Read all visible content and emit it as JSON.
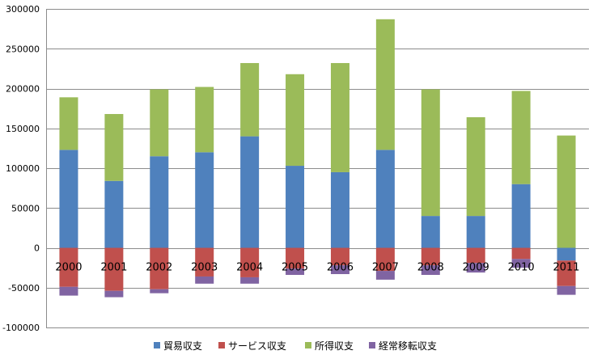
{
  "chart_data": {
    "type": "bar",
    "stacked": true,
    "categories": [
      "2000",
      "2001",
      "2002",
      "2003",
      "2004",
      "2005",
      "2006",
      "2007",
      "2008",
      "2009",
      "2010",
      "2011"
    ],
    "series": [
      {
        "name": "貿易収支",
        "color": "#4f81bd",
        "values": [
          123000,
          84000,
          115000,
          120000,
          140000,
          103000,
          95000,
          123000,
          40000,
          40000,
          80000,
          -16000
        ]
      },
      {
        "name": "サービス収支",
        "color": "#c0504d",
        "values": [
          -49000,
          -54000,
          -52000,
          -36000,
          -37000,
          -26000,
          -22000,
          -29000,
          -22000,
          -19000,
          -14000,
          -32000
        ]
      },
      {
        "name": "所得収支",
        "color": "#9bbb59",
        "values": [
          66000,
          84000,
          84000,
          82000,
          92000,
          115000,
          137000,
          164000,
          159000,
          124000,
          117000,
          141000
        ]
      },
      {
        "name": "経常移転収支",
        "color": "#8064a2",
        "values": [
          -11000,
          -8000,
          -5000,
          -9000,
          -8000,
          -8000,
          -11000,
          -11000,
          -12000,
          -12000,
          -11000,
          -11000
        ]
      }
    ],
    "ylim": [
      -100000,
      300000
    ],
    "yticks": [
      "300000",
      "250000",
      "200000",
      "150000",
      "100000",
      "50000",
      "0",
      "-50000",
      "-100000"
    ],
    "ytick_values": [
      300000,
      250000,
      200000,
      150000,
      100000,
      50000,
      0,
      -50000,
      -100000
    ],
    "grid": true,
    "legend_position": "bottom"
  }
}
